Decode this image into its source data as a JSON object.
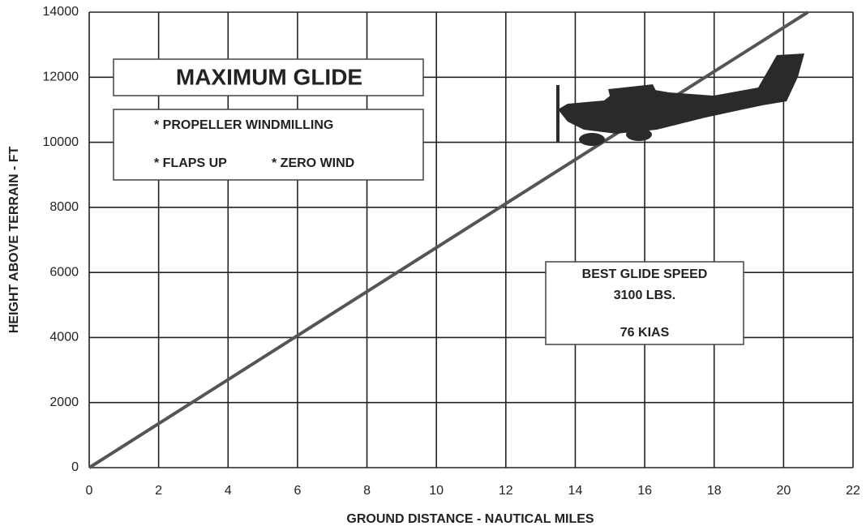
{
  "chart_data": {
    "type": "line",
    "title": "MAXIMUM GLIDE",
    "notes": [
      "* PROPELLER WINDMILLING",
      "* FLAPS UP",
      "* ZERO WIND"
    ],
    "speed_box": [
      "BEST GLIDE SPEED",
      "3100 LBS.",
      "76 KIAS"
    ],
    "x_label": "GROUND DISTANCE - NAUTICAL MILES",
    "y_label": "HEIGHT ABOVE TERRAIN - FT",
    "x": [
      0,
      20.7
    ],
    "values": [
      0,
      14000
    ],
    "color": "#555555",
    "xlim": [
      0,
      22
    ],
    "xticks": [
      0,
      2,
      4,
      6,
      8,
      10,
      12,
      14,
      16,
      18,
      20,
      22
    ],
    "ylim": [
      0,
      14000
    ],
    "yticks": [
      0,
      2000,
      4000,
      6000,
      8000,
      10000,
      12000,
      14000
    ],
    "grid": true
  }
}
